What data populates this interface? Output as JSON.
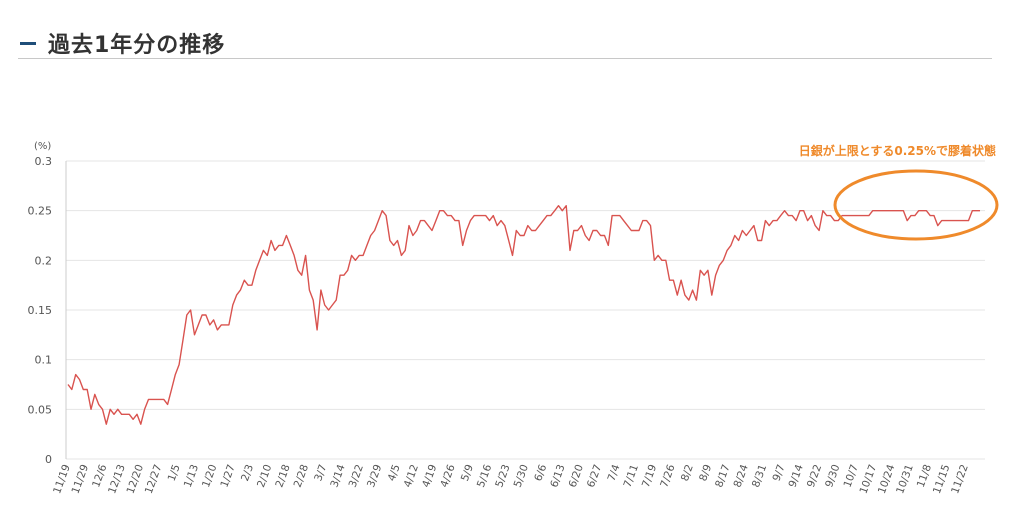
{
  "header": {
    "title": "過去1年分の推移"
  },
  "chart_data": {
    "type": "line",
    "ylabel": "(%)",
    "ylim": [
      0,
      0.3
    ],
    "yticks": [
      0,
      0.05,
      0.1,
      0.15,
      0.2,
      0.25,
      0.3
    ],
    "grid": true,
    "line_color": "#d9534f",
    "annotation": {
      "text": "日銀が上限とする0.25%で膠着状態",
      "color": "#ef8a2b"
    },
    "xticks": [
      "11/19",
      "11/29",
      "12/6",
      "12/13",
      "12/20",
      "12/27",
      "1/5",
      "1/13",
      "1/20",
      "1/27",
      "2/3",
      "2/10",
      "2/18",
      "2/28",
      "3/7",
      "3/14",
      "3/22",
      "3/29",
      "4/5",
      "4/12",
      "4/19",
      "4/26",
      "5/9",
      "5/16",
      "5/23",
      "5/30",
      "6/6",
      "6/13",
      "6/20",
      "6/27",
      "7/4",
      "7/11",
      "7/19",
      "7/26",
      "8/2",
      "8/9",
      "8/17",
      "8/24",
      "8/31",
      "9/7",
      "9/14",
      "9/22",
      "9/30",
      "10/7",
      "10/17",
      "10/24",
      "10/31",
      "11/8",
      "11/15",
      "11/22"
    ],
    "series": [
      {
        "values": [
          0.075,
          0.07,
          0.085,
          0.08,
          0.07,
          0.07,
          0.05,
          0.065,
          0.055,
          0.05,
          0.035,
          0.05,
          0.045,
          0.05,
          0.045,
          0.045,
          0.045,
          0.04,
          0.045,
          0.035,
          0.05,
          0.06,
          0.06,
          0.06,
          0.06,
          0.06,
          0.055,
          0.07,
          0.085,
          0.095,
          0.12,
          0.145,
          0.15,
          0.125,
          0.135,
          0.145,
          0.145,
          0.135,
          0.14,
          0.13,
          0.135,
          0.135,
          0.135,
          0.155,
          0.165,
          0.17,
          0.18,
          0.175,
          0.175,
          0.19,
          0.2,
          0.21,
          0.205,
          0.22,
          0.21,
          0.215,
          0.215,
          0.225,
          0.215,
          0.205,
          0.19,
          0.185,
          0.205,
          0.17,
          0.16,
          0.13,
          0.17,
          0.155,
          0.15,
          0.155,
          0.16,
          0.185,
          0.185,
          0.19,
          0.205,
          0.2,
          0.205,
          0.205,
          0.215,
          0.225,
          0.23,
          0.24,
          0.25,
          0.245,
          0.22,
          0.215,
          0.22,
          0.205,
          0.21,
          0.235,
          0.225,
          0.23,
          0.24,
          0.24,
          0.235,
          0.23,
          0.24,
          0.25,
          0.25,
          0.245,
          0.245,
          0.24,
          0.24,
          0.215,
          0.23,
          0.24,
          0.245,
          0.245,
          0.245,
          0.245,
          0.24,
          0.245,
          0.235,
          0.24,
          0.235,
          0.22,
          0.205,
          0.23,
          0.225,
          0.225,
          0.235,
          0.23,
          0.23,
          0.235,
          0.24,
          0.245,
          0.245,
          0.25,
          0.255,
          0.25,
          0.255,
          0.21,
          0.23,
          0.23,
          0.235,
          0.225,
          0.22,
          0.23,
          0.23,
          0.225,
          0.225,
          0.215,
          0.245,
          0.245,
          0.245,
          0.24,
          0.235,
          0.23,
          0.23,
          0.23,
          0.24,
          0.24,
          0.235,
          0.2,
          0.205,
          0.2,
          0.2,
          0.18,
          0.18,
          0.165,
          0.18,
          0.165,
          0.16,
          0.17,
          0.16,
          0.19,
          0.185,
          0.19,
          0.165,
          0.185,
          0.195,
          0.2,
          0.21,
          0.215,
          0.225,
          0.22,
          0.23,
          0.225,
          0.23,
          0.235,
          0.22,
          0.22,
          0.24,
          0.235,
          0.24,
          0.24,
          0.245,
          0.25,
          0.245,
          0.245,
          0.24,
          0.25,
          0.25,
          0.24,
          0.245,
          0.235,
          0.23,
          0.25,
          0.245,
          0.245,
          0.24,
          0.24,
          0.245,
          0.245,
          0.245,
          0.245,
          0.245,
          0.245,
          0.245,
          0.245,
          0.25,
          0.25,
          0.25,
          0.25,
          0.25,
          0.25,
          0.25,
          0.25,
          0.25,
          0.24,
          0.245,
          0.245,
          0.25,
          0.25,
          0.25,
          0.245,
          0.245,
          0.235,
          0.24,
          0.24,
          0.24,
          0.24,
          0.24,
          0.24,
          0.24,
          0.24,
          0.25,
          0.25,
          0.25
        ]
      }
    ]
  }
}
